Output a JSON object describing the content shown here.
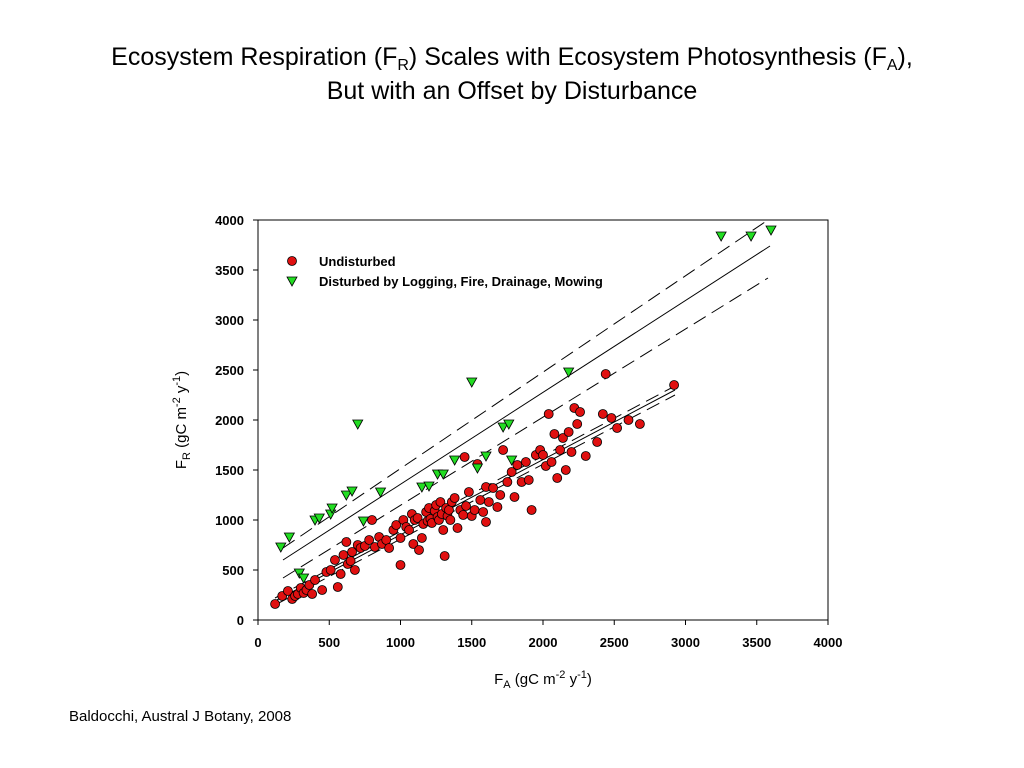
{
  "title": {
    "line1_a": "Ecosystem Respiration (F",
    "line1_sub1": "R",
    "line1_b": ") Scales with Ecosystem Photosynthesis (F",
    "line1_sub2": "A",
    "line1_c": "),",
    "line2": "But with an Offset by Disturbance"
  },
  "citation": "Baldocchi, Austral J Botany, 2008",
  "chart_data": {
    "type": "scatter",
    "xlim": [
      0,
      4000
    ],
    "ylim": [
      0,
      4000
    ],
    "xticks": [
      0,
      500,
      1000,
      1500,
      2000,
      2500,
      3000,
      3500,
      4000
    ],
    "yticks": [
      0,
      500,
      1000,
      1500,
      2000,
      2500,
      3000,
      3500,
      4000
    ],
    "xlabel": {
      "main": "F",
      "sub": "A",
      "unit_a": " (gC m",
      "sup1": "-2",
      "unit_b": " y",
      "sup2": "-1",
      "unit_c": ")"
    },
    "ylabel": {
      "main": "F",
      "sub": "R",
      "unit_a": " (gC m",
      "sup1": "-2",
      "unit_b": " y",
      "sup2": "-1",
      "unit_c": ")"
    },
    "legend_position": "top-left",
    "grid": false,
    "series": [
      {
        "name": "Undisturbed",
        "marker": "circle",
        "color": "#e01010",
        "points": [
          [
            120,
            160
          ],
          [
            170,
            240
          ],
          [
            210,
            290
          ],
          [
            240,
            210
          ],
          [
            260,
            240
          ],
          [
            280,
            260
          ],
          [
            300,
            320
          ],
          [
            320,
            270
          ],
          [
            340,
            300
          ],
          [
            360,
            350
          ],
          [
            380,
            260
          ],
          [
            400,
            400
          ],
          [
            450,
            300
          ],
          [
            480,
            480
          ],
          [
            510,
            500
          ],
          [
            540,
            600
          ],
          [
            560,
            330
          ],
          [
            580,
            460
          ],
          [
            600,
            650
          ],
          [
            620,
            780
          ],
          [
            630,
            560
          ],
          [
            650,
            590
          ],
          [
            660,
            680
          ],
          [
            680,
            500
          ],
          [
            700,
            750
          ],
          [
            720,
            720
          ],
          [
            750,
            740
          ],
          [
            780,
            800
          ],
          [
            800,
            1000
          ],
          [
            820,
            730
          ],
          [
            850,
            830
          ],
          [
            870,
            760
          ],
          [
            900,
            800
          ],
          [
            920,
            720
          ],
          [
            950,
            900
          ],
          [
            970,
            950
          ],
          [
            1000,
            820
          ],
          [
            1000,
            550
          ],
          [
            1020,
            1000
          ],
          [
            1040,
            930
          ],
          [
            1060,
            900
          ],
          [
            1080,
            1060
          ],
          [
            1090,
            760
          ],
          [
            1100,
            1000
          ],
          [
            1120,
            1020
          ],
          [
            1130,
            700
          ],
          [
            1150,
            820
          ],
          [
            1160,
            960
          ],
          [
            1180,
            1080
          ],
          [
            1190,
            990
          ],
          [
            1200,
            1120
          ],
          [
            1210,
            1010
          ],
          [
            1220,
            970
          ],
          [
            1240,
            1090
          ],
          [
            1250,
            1150
          ],
          [
            1260,
            1030
          ],
          [
            1270,
            1000
          ],
          [
            1280,
            1180
          ],
          [
            1290,
            1060
          ],
          [
            1300,
            900
          ],
          [
            1310,
            640
          ],
          [
            1320,
            1120
          ],
          [
            1330,
            1040
          ],
          [
            1340,
            1100
          ],
          [
            1350,
            1000
          ],
          [
            1360,
            1180
          ],
          [
            1380,
            1220
          ],
          [
            1400,
            920
          ],
          [
            1420,
            1100
          ],
          [
            1440,
            1050
          ],
          [
            1450,
            1630
          ],
          [
            1460,
            1140
          ],
          [
            1480,
            1280
          ],
          [
            1500,
            1040
          ],
          [
            1520,
            1100
          ],
          [
            1540,
            1560
          ],
          [
            1560,
            1200
          ],
          [
            1580,
            1080
          ],
          [
            1600,
            980
          ],
          [
            1600,
            1330
          ],
          [
            1620,
            1180
          ],
          [
            1650,
            1320
          ],
          [
            1680,
            1130
          ],
          [
            1700,
            1250
          ],
          [
            1720,
            1700
          ],
          [
            1750,
            1380
          ],
          [
            1780,
            1480
          ],
          [
            1800,
            1230
          ],
          [
            1820,
            1550
          ],
          [
            1850,
            1380
          ],
          [
            1880,
            1580
          ],
          [
            1900,
            1400
          ],
          [
            1920,
            1100
          ],
          [
            1950,
            1650
          ],
          [
            1980,
            1700
          ],
          [
            2000,
            1650
          ],
          [
            2020,
            1540
          ],
          [
            2040,
            2060
          ],
          [
            2060,
            1580
          ],
          [
            2080,
            1860
          ],
          [
            2100,
            1420
          ],
          [
            2120,
            1700
          ],
          [
            2140,
            1820
          ],
          [
            2160,
            1500
          ],
          [
            2180,
            1880
          ],
          [
            2200,
            1680
          ],
          [
            2220,
            2120
          ],
          [
            2240,
            1960
          ],
          [
            2260,
            2080
          ],
          [
            2300,
            1640
          ],
          [
            2380,
            1780
          ],
          [
            2420,
            2060
          ],
          [
            2440,
            2460
          ],
          [
            2480,
            2020
          ],
          [
            2520,
            1920
          ],
          [
            2600,
            2000
          ],
          [
            2680,
            1960
          ],
          [
            2920,
            2350
          ]
        ]
      },
      {
        "name": "Disturbed by Logging, Fire, Drainage, Mowing",
        "marker": "triangle-down",
        "color": "#22dd22",
        "points": [
          [
            160,
            730
          ],
          [
            220,
            830
          ],
          [
            290,
            470
          ],
          [
            320,
            420
          ],
          [
            400,
            1000
          ],
          [
            430,
            1020
          ],
          [
            510,
            1060
          ],
          [
            520,
            1120
          ],
          [
            620,
            1250
          ],
          [
            660,
            1290
          ],
          [
            700,
            1960
          ],
          [
            740,
            990
          ],
          [
            860,
            1280
          ],
          [
            1150,
            1330
          ],
          [
            1200,
            1340
          ],
          [
            1260,
            1460
          ],
          [
            1300,
            1460
          ],
          [
            1380,
            1600
          ],
          [
            1500,
            2380
          ],
          [
            1540,
            1520
          ],
          [
            1600,
            1640
          ],
          [
            1720,
            1930
          ],
          [
            1760,
            1960
          ],
          [
            1780,
            1600
          ],
          [
            2180,
            2480
          ],
          [
            3250,
            3840
          ],
          [
            3460,
            3840
          ],
          [
            3600,
            3900
          ]
        ]
      }
    ]
  }
}
